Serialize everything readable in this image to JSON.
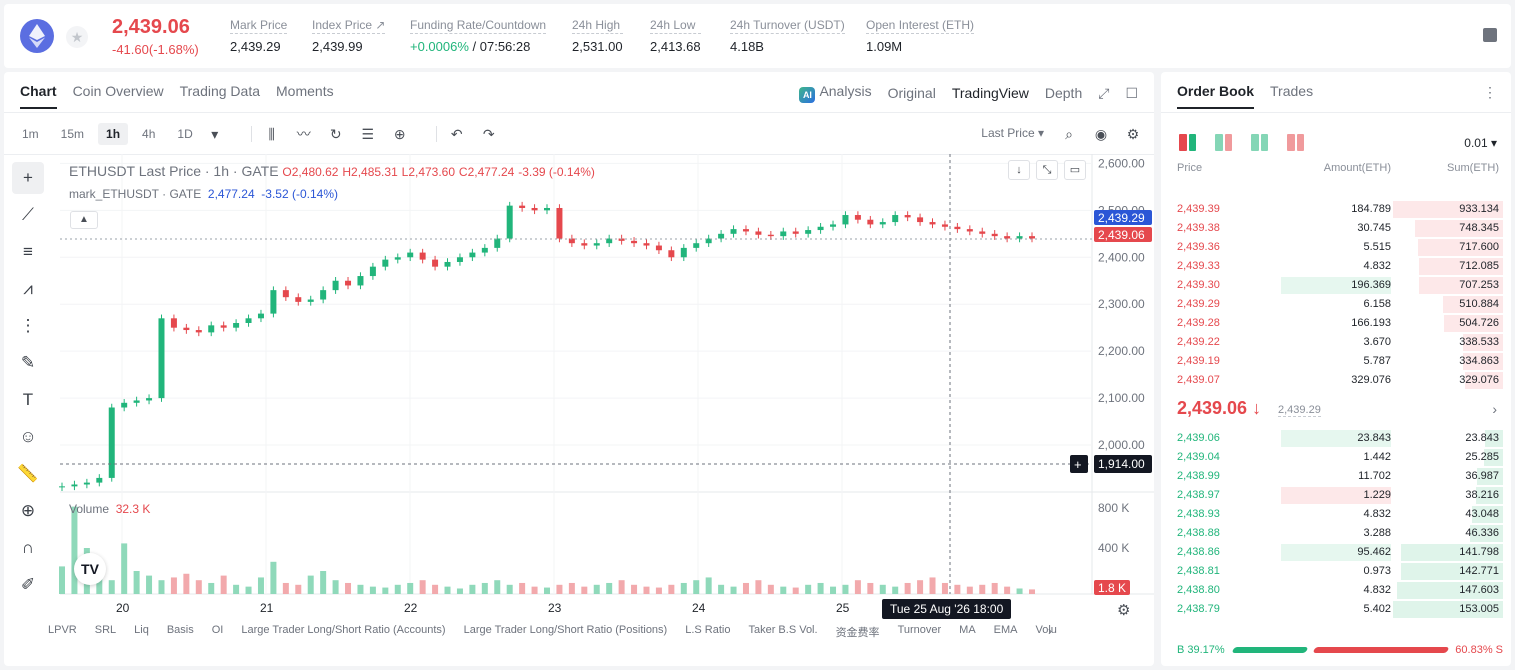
{
  "ticker": {
    "last_price": "2,439.06",
    "change": "-41.60(-1.68%)",
    "stats": [
      {
        "label": "Mark Price",
        "value": "2,439.29"
      },
      {
        "label": "Index Price ↗",
        "value": "2,439.99"
      },
      {
        "label": "Funding Rate/Countdown",
        "value_green": "+0.0006%",
        "value": " / 07:56:28"
      },
      {
        "label": "24h High",
        "value": "2,531.00"
      },
      {
        "label": "24h Low",
        "value": "2,413.68"
      },
      {
        "label": "24h Turnover (USDT)",
        "value": "4.18B"
      },
      {
        "label": "Open Interest (ETH)",
        "value": "1.09M"
      }
    ]
  },
  "chart_panel": {
    "tabs": [
      "Chart",
      "Coin Overview",
      "Trading Data",
      "Moments"
    ],
    "views": [
      "Analysis",
      "Original",
      "TradingView",
      "Depth"
    ],
    "ai_badge": "AI",
    "timeframes": [
      "1m",
      "15m",
      "1h",
      "4h",
      "1D"
    ],
    "price_type": "Last Price ▾",
    "legend": {
      "symbol": "ETHUSDT Last Price · 1h · GATE",
      "o": "O2,480.62",
      "h": "H2,485.31",
      "l": "L2,473.60",
      "c": "C2,477.24",
      "chg": "-3.39 (-0.14%)",
      "mark_name": "mark_ETHUSDT · GATE",
      "mark_val": "2,477.24",
      "mark_chg": "-3.52 (-0.14%)"
    },
    "volume_label": "Volume",
    "volume_value": "32.3 K",
    "date_tip": "Tue 25 Aug '26   18:00",
    "tv_logo": "TV",
    "indicators": [
      "LPVR",
      "SRL",
      "Liq",
      "Basis",
      "OI",
      "Large Trader Long/Short Ratio (Accounts)",
      "Large Trader Long/Short Ratio (Positions)",
      "L.S Ratio",
      "Taker B.S Vol.",
      "资金费率",
      "Turnover",
      "MA",
      "EMA",
      "Volu"
    ]
  },
  "chart_data": {
    "type": "candlestick",
    "interval": "1h",
    "price_axis_ticks": [
      "2,600.00",
      "2,500.00",
      "2,400.00",
      "2,300.00",
      "2,200.00",
      "2,100.00",
      "2,000.00"
    ],
    "volume_axis_ticks": [
      "800 K",
      "400 K"
    ],
    "x_ticks": [
      "20",
      "21",
      "22",
      "23",
      "24",
      "25"
    ],
    "ylim": [
      1900,
      2620
    ],
    "labels": {
      "mark": "2,439.29",
      "last": "2,439.06",
      "cross": "1,914.00",
      "vol": "1.8 K"
    },
    "close_path": [
      1912,
      1916,
      1920,
      1930,
      2080,
      2090,
      2095,
      2100,
      2270,
      2250,
      2245,
      2240,
      2255,
      2250,
      2260,
      2270,
      2280,
      2330,
      2315,
      2305,
      2310,
      2330,
      2350,
      2340,
      2360,
      2380,
      2395,
      2400,
      2410,
      2395,
      2380,
      2390,
      2400,
      2410,
      2420,
      2440,
      2510,
      2505,
      2500,
      2505,
      2440,
      2430,
      2425,
      2430,
      2440,
      2435,
      2430,
      2425,
      2415,
      2400,
      2420,
      2430,
      2440,
      2450,
      2460,
      2455,
      2448,
      2445,
      2455,
      2450,
      2458,
      2465,
      2470,
      2490,
      2480,
      2470,
      2475,
      2490,
      2485,
      2475,
      2470,
      2465,
      2460,
      2455,
      2450,
      2445,
      2440,
      2445,
      2440
    ],
    "volume_path": [
      0.3,
      0.95,
      0.5,
      0.2,
      0.15,
      0.55,
      0.25,
      0.2,
      0.15,
      0.18,
      0.22,
      0.15,
      0.12,
      0.2,
      0.1,
      0.08,
      0.18,
      0.35,
      0.12,
      0.1,
      0.2,
      0.25,
      0.15,
      0.12,
      0.1,
      0.08,
      0.07,
      0.1,
      0.12,
      0.15,
      0.1,
      0.08,
      0.06,
      0.1,
      0.12,
      0.15,
      0.1,
      0.12,
      0.08,
      0.07,
      0.1,
      0.12,
      0.08,
      0.1,
      0.12,
      0.15,
      0.1,
      0.08,
      0.07,
      0.1,
      0.12,
      0.15,
      0.18,
      0.1,
      0.08,
      0.12,
      0.15,
      0.1,
      0.08,
      0.07,
      0.1,
      0.12,
      0.08,
      0.1,
      0.15,
      0.12,
      0.1,
      0.08,
      0.12,
      0.15,
      0.18,
      0.12,
      0.1,
      0.08,
      0.1,
      0.12,
      0.08,
      0.06,
      0.05
    ]
  },
  "orderbook": {
    "tabs": [
      "Order Book",
      "Trades"
    ],
    "precision": "0.01 ▾",
    "head": {
      "price": "Price",
      "amount": "Amount(ETH)",
      "sum": "Sum(ETH)"
    },
    "asks": [
      {
        "price": "2,439.39",
        "amount": "184.789",
        "sum": "933.134",
        "depth": 1.0,
        "amt_hl": false
      },
      {
        "price": "2,439.38",
        "amount": "30.745",
        "sum": "748.345",
        "depth": 0.8,
        "amt_hl": false
      },
      {
        "price": "2,439.36",
        "amount": "5.515",
        "sum": "717.600",
        "depth": 0.77,
        "amt_hl": false
      },
      {
        "price": "2,439.33",
        "amount": "4.832",
        "sum": "712.085",
        "depth": 0.76,
        "amt_hl": false
      },
      {
        "price": "2,439.30",
        "amount": "196.369",
        "sum": "707.253",
        "depth": 0.76,
        "amt_hl": true
      },
      {
        "price": "2,439.29",
        "amount": "6.158",
        "sum": "510.884",
        "depth": 0.55,
        "amt_hl": false
      },
      {
        "price": "2,439.28",
        "amount": "166.193",
        "sum": "504.726",
        "depth": 0.54,
        "amt_hl": false
      },
      {
        "price": "2,439.22",
        "amount": "3.670",
        "sum": "338.533",
        "depth": 0.36,
        "amt_hl": false
      },
      {
        "price": "2,439.19",
        "amount": "5.787",
        "sum": "334.863",
        "depth": 0.36,
        "amt_hl": false
      },
      {
        "price": "2,439.07",
        "amount": "329.076",
        "sum": "329.076",
        "depth": 0.35,
        "amt_hl": false
      }
    ],
    "mid_price": "2,439.06 ↓",
    "mid_mark": "2,439.29",
    "bids": [
      {
        "price": "2,439.06",
        "amount": "23.843",
        "sum": "23.843",
        "depth": 0.16,
        "hl": "green"
      },
      {
        "price": "2,439.04",
        "amount": "1.442",
        "sum": "25.285",
        "depth": 0.17,
        "hl": ""
      },
      {
        "price": "2,438.99",
        "amount": "11.702",
        "sum": "36.987",
        "depth": 0.24,
        "hl": ""
      },
      {
        "price": "2,438.97",
        "amount": "1.229",
        "sum": "38.216",
        "depth": 0.25,
        "hl": "red"
      },
      {
        "price": "2,438.93",
        "amount": "4.832",
        "sum": "43.048",
        "depth": 0.28,
        "hl": ""
      },
      {
        "price": "2,438.88",
        "amount": "3.288",
        "sum": "46.336",
        "depth": 0.3,
        "hl": ""
      },
      {
        "price": "2,438.86",
        "amount": "95.462",
        "sum": "141.798",
        "depth": 0.93,
        "hl": "green"
      },
      {
        "price": "2,438.81",
        "amount": "0.973",
        "sum": "142.771",
        "depth": 0.93,
        "hl": ""
      },
      {
        "price": "2,438.80",
        "amount": "4.832",
        "sum": "147.603",
        "depth": 0.96,
        "hl": ""
      },
      {
        "price": "2,438.79",
        "amount": "5.402",
        "sum": "153.005",
        "depth": 1.0,
        "hl": ""
      }
    ],
    "ratio": {
      "buy": "B 39.17%",
      "sell": "60.83% S"
    }
  },
  "colors": {
    "up": "#21b57b",
    "down": "#e5484d",
    "mark": "#2b56d6",
    "brand": "#5b6ee1"
  }
}
